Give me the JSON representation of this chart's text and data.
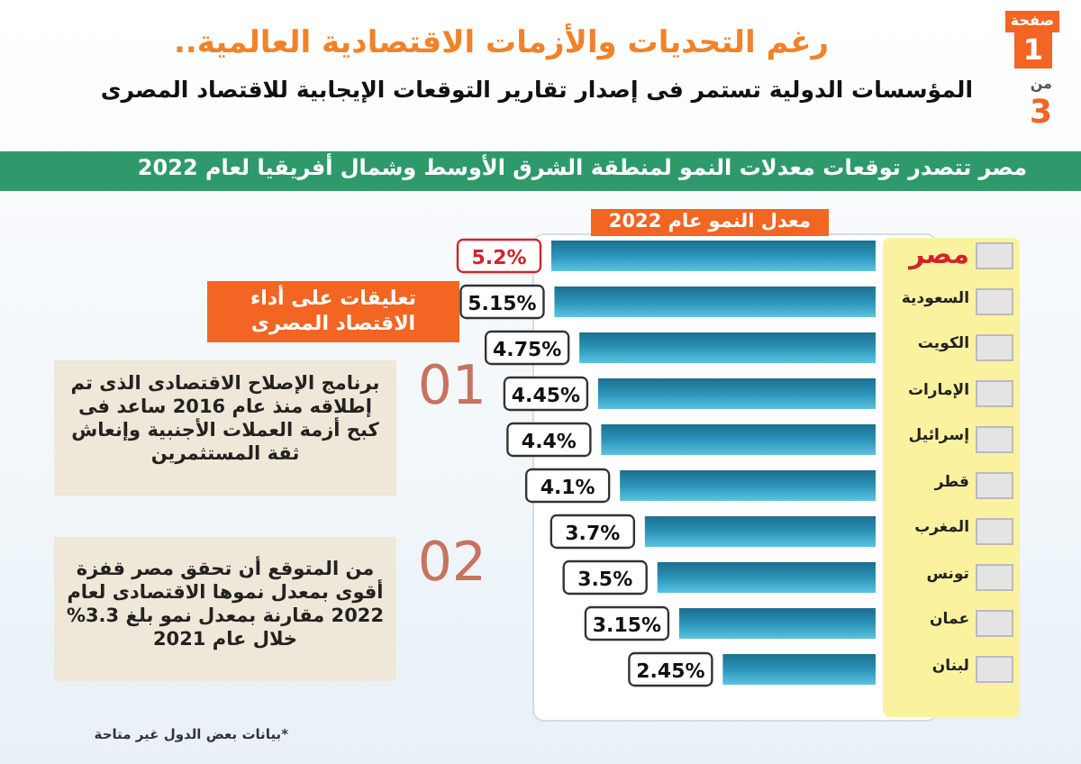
{
  "chart_data": {
    "type": "bar",
    "orientation": "horizontal",
    "title": "رغم التحديات والأزمات الاقتصادية العالمية..",
    "subtitle": "المؤسسات الدولية تستمر فى إصدار تقارير التوقعات الإيجابية للاقتصاد المصرى",
    "categories": [
      "مصر",
      "السعودية",
      "الكويت",
      "الإمارات",
      "إسرائيل",
      "قطر",
      "المغرب",
      "تونس",
      "عمان",
      "لبنان"
    ],
    "values": [
      5.2,
      5.15,
      4.75,
      4.45,
      4.4,
      4.1,
      3.7,
      3.5,
      3.15,
      2.45
    ],
    "value_labels": [
      "5.2%",
      "5.15%",
      "4.75%",
      "4.45%",
      "4.4%",
      "4.1%",
      "3.7%",
      "3.5%",
      "3.15%",
      "2.45%"
    ],
    "color": "#2b93b8",
    "annotations": [
      "مصر تتصدر توقعات معدلات النمو لمنطقة الشرق الأوسط وشمال أفريقيا لعام 2022",
      "معدل النمو عام 2022",
      "تعليقات على أداء الاقتصاد المصرى",
      "01",
      "برنامج الإصلاح الاقتصادى الذى تم إطلاقه منذ عام 2016 ساعد فى كبح أزمة العملات الأجنبية وإنعاش ثقة المستثمرين",
      "02",
      "من المتوقع أن تحقق مصر قفزة أقوى بمعدل نموها الاقتصادى لعام 2022 مقارنة بمعدل نمو بلغ 3.3% خلال عام 2021",
      "*بيانات بعض الدول غير متاحة",
      "صفحة",
      "1",
      "من",
      "3"
    ]
  }
}
